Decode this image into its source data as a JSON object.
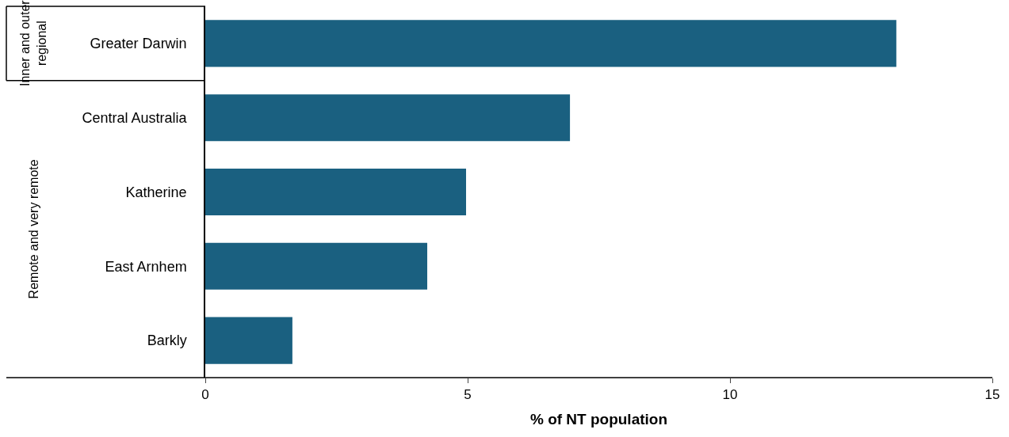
{
  "chart_data": {
    "type": "bar",
    "orientation": "horizontal",
    "categories": [
      "Greater Darwin",
      "Central Australia",
      "Katherine",
      "East Arnhem",
      "Barkly"
    ],
    "values": [
      13.17,
      6.95,
      4.97,
      4.23,
      1.66
    ],
    "color": "#1a6080",
    "xlabel": "% of NT population",
    "xlim": [
      0,
      15
    ],
    "xticks": [
      0,
      5,
      10,
      15
    ],
    "legend": false,
    "annotations": [
      "Inner and outer\nregional",
      "Remote and very remote"
    ]
  }
}
